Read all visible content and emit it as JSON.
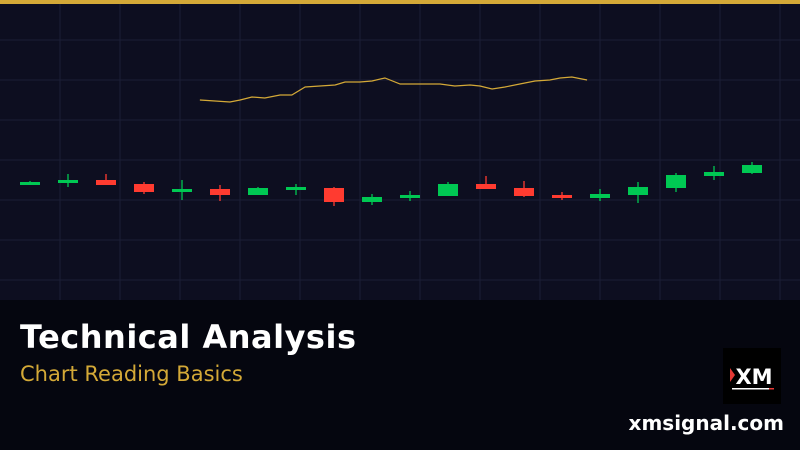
{
  "title": "Technical Analysis",
  "subtitle": "Chart Reading Basics",
  "website": "xmsignal.com",
  "logo_text": "XM",
  "colors": {
    "accent": "#d4a937",
    "up": "#00c853",
    "down": "#ff3b30",
    "background": "#0d0e20",
    "grid": "#1c1e36"
  },
  "chart_data": {
    "type": "candlestick",
    "grid": true,
    "candles": [
      {
        "o": 115,
        "h": 119,
        "l": 115,
        "c": 118
      },
      {
        "o": 117,
        "h": 126,
        "l": 113,
        "c": 120
      },
      {
        "o": 120,
        "h": 126,
        "l": 115,
        "c": 115
      },
      {
        "o": 116,
        "h": 118,
        "l": 106,
        "c": 108
      },
      {
        "o": 108,
        "h": 120,
        "l": 100,
        "c": 111
      },
      {
        "o": 111,
        "h": 115,
        "l": 99,
        "c": 105
      },
      {
        "o": 105,
        "h": 113,
        "l": 105,
        "c": 112
      },
      {
        "o": 110,
        "h": 116,
        "l": 105,
        "c": 113
      },
      {
        "o": 112,
        "h": 113,
        "l": 94,
        "c": 98
      },
      {
        "o": 98,
        "h": 106,
        "l": 95,
        "c": 103
      },
      {
        "o": 102,
        "h": 109,
        "l": 99,
        "c": 105
      },
      {
        "o": 104,
        "h": 118,
        "l": 104,
        "c": 116
      },
      {
        "o": 116,
        "h": 124,
        "l": 111,
        "c": 111
      },
      {
        "o": 112,
        "h": 119,
        "l": 103,
        "c": 104
      },
      {
        "o": 105,
        "h": 108,
        "l": 100,
        "c": 102
      },
      {
        "o": 102,
        "h": 111,
        "l": 99,
        "c": 106
      },
      {
        "o": 105,
        "h": 118,
        "l": 97,
        "c": 113
      },
      {
        "o": 112,
        "h": 127,
        "l": 108,
        "c": 125
      },
      {
        "o": 124,
        "h": 134,
        "l": 120,
        "c": 128
      },
      {
        "o": 127,
        "h": 138,
        "l": 126,
        "c": 135
      }
    ],
    "line": {
      "color": "#d4a937",
      "x": [
        4.47,
        4.87,
        5.26,
        5.53,
        5.84,
        6.18,
        6.58,
        6.89,
        7.24,
        7.63,
        8.03,
        8.29,
        8.68,
        9.0,
        9.34,
        9.74,
        10.26,
        10.79,
        11.18,
        11.58,
        11.84,
        12.16,
        12.5,
        12.89,
        13.29,
        13.68,
        13.95,
        14.26,
        14.66
      ],
      "y": [
        200,
        199,
        198,
        200,
        203,
        202,
        205,
        205,
        213,
        214,
        215,
        218,
        218,
        219,
        222,
        216,
        216,
        216,
        214,
        215,
        214,
        211,
        213,
        216,
        219,
        220,
        222,
        223,
        220
      ]
    }
  }
}
